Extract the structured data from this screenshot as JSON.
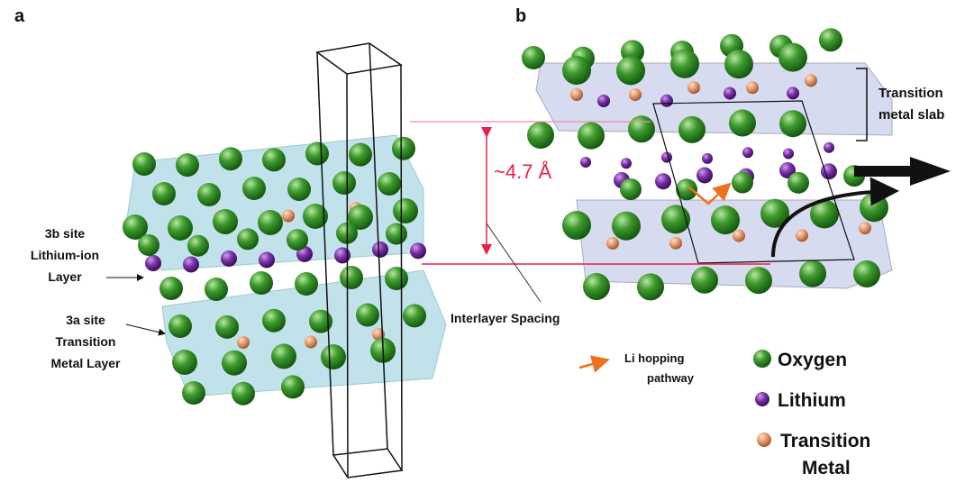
{
  "panel_a": {
    "label": "a",
    "annotations": [
      {
        "lines": [
          "3b site",
          "Lithium-ion",
          "Layer"
        ]
      },
      {
        "lines": [
          "3a site",
          "Transition",
          "Metal Layer"
        ]
      }
    ]
  },
  "spacing": {
    "value_label": "~4.7 Å",
    "caption": "Interlayer Spacing"
  },
  "panel_b": {
    "label": "b",
    "bracket_label": [
      "Transition",
      "metal slab"
    ]
  },
  "legend": {
    "pathway": [
      "Li hopping",
      "pathway"
    ],
    "items": [
      {
        "lines": [
          "Oxygen"
        ]
      },
      {
        "lines": [
          "Lithium"
        ]
      },
      {
        "lines": [
          "Transition",
          "Metal"
        ]
      }
    ]
  }
}
